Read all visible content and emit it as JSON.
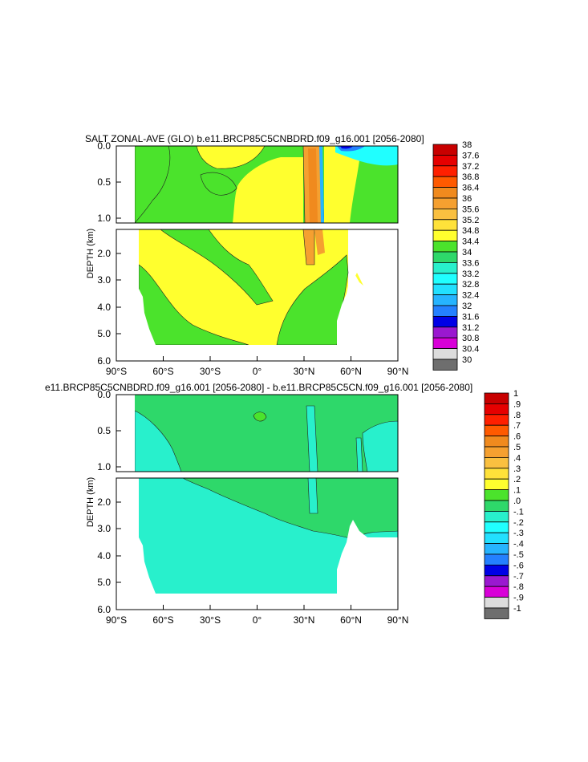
{
  "chart_data": [
    {
      "type": "heatmap",
      "title": "SALT ZONAL-AVE (GLO) b.e11.BRCP85C5CNBDRD.f09_g16.001 [2056-2080]",
      "xlabel": "",
      "ylabel": "DEPTH (km)",
      "x_tick_labels": [
        "90°S",
        "60°S",
        "30°S",
        "0°",
        "30°N",
        "60°N",
        "90°N"
      ],
      "upper_y_tick_labels": [
        "0.0",
        "0.5",
        "1.0"
      ],
      "lower_y_tick_labels": [
        "2.0",
        "3.0",
        "4.0",
        "5.0",
        "6.0"
      ],
      "xlim": [
        -90,
        90
      ],
      "ylim": [
        0,
        6
      ],
      "colorbar": {
        "levels": [
          "38",
          "37.6",
          "37.2",
          "36.8",
          "36.4",
          "36",
          "35.6",
          "35.2",
          "34.8",
          "34.4",
          "34",
          "33.6",
          "33.2",
          "32.8",
          "32.4",
          "32",
          "31.6",
          "31.2",
          "30.8",
          "30.4",
          "30"
        ],
        "colors": [
          "#c80000",
          "#e60000",
          "#ff2000",
          "#ff5a00",
          "#f08a1e",
          "#f5a030",
          "#fac040",
          "#ffe23a",
          "#ffff2e",
          "#4be32c",
          "#2ed86a",
          "#28f0cc",
          "#20ffff",
          "#22e0ff",
          "#26b4ff",
          "#2480ff",
          "#0000e6",
          "#9a18d0",
          "#d800d8",
          "#dcdcdc",
          "#6e6e6e"
        ]
      },
      "dominant_values": {
        "surface_layer": 34.4,
        "deep_ocean": 34.8,
        "subtropical_surface_maxima": 35.6,
        "north_atlantic_band": 36.0
      }
    },
    {
      "type": "heatmap",
      "title": "e11.BRCP85C5CNBDRD.f09_g16.001 [2056-2080] - b.e11.BRCP85C5CN.f09_g16.001 [2056-2080]",
      "xlabel": "",
      "ylabel": "DEPTH (km)",
      "x_tick_labels": [
        "90°S",
        "60°S",
        "30°S",
        "0°",
        "30°N",
        "60°N",
        "90°N"
      ],
      "upper_y_tick_labels": [
        "0.0",
        "0.5",
        "1.0"
      ],
      "lower_y_tick_labels": [
        "2.0",
        "3.0",
        "4.0",
        "5.0",
        "6.0"
      ],
      "xlim": [
        -90,
        90
      ],
      "ylim": [
        0,
        6
      ],
      "colorbar": {
        "levels": [
          "1",
          ".9",
          ".8",
          ".7",
          ".6",
          ".5",
          ".4",
          ".3",
          ".2",
          ".1",
          ".0",
          "-.1",
          "-.2",
          "-.3",
          "-.4",
          "-.5",
          "-.6",
          "-.7",
          "-.8",
          "-.9",
          "-1"
        ],
        "colors": [
          "#c80000",
          "#e60000",
          "#ff2000",
          "#ff5a00",
          "#f08a1e",
          "#f5a030",
          "#fac040",
          "#ffe23a",
          "#ffff2e",
          "#4be32c",
          "#2ed86a",
          "#28f0cc",
          "#20ffff",
          "#22e0ff",
          "#26b4ff",
          "#2480ff",
          "#0000e6",
          "#9a18d0",
          "#d800d8",
          "#dcdcdc",
          "#6e6e6e"
        ]
      },
      "dominant_values": {
        "upper_layer": 0.0,
        "deep_ocean": -0.1
      }
    }
  ]
}
